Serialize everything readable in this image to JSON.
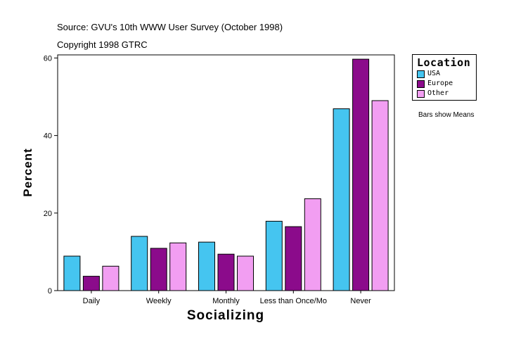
{
  "header": {
    "source": "Source: GVU's 10th WWW User Survey (October 1998)",
    "copyright": "Copyright 1998 GTRC"
  },
  "note": "Bars show Means",
  "chart_data": {
    "type": "bar",
    "title": "",
    "xlabel": "Socializing",
    "ylabel": "Percent",
    "categories": [
      "Daily",
      "Weekly",
      "Monthly",
      "Less than Once/Mo",
      "Never"
    ],
    "series": [
      {
        "name": "USA",
        "color": "#45c5f0",
        "values": [
          8.9,
          14.0,
          12.5,
          17.9,
          46.9
        ]
      },
      {
        "name": "Europe",
        "color": "#8b0b8b",
        "values": [
          3.7,
          10.9,
          9.4,
          16.5,
          59.7
        ]
      },
      {
        "name": "Other",
        "color": "#f29ef2",
        "values": [
          6.3,
          12.3,
          8.9,
          23.7,
          49.0
        ]
      }
    ],
    "ylim": [
      0,
      60.8
    ],
    "yticks": [
      0,
      20,
      40,
      60
    ],
    "grid": false,
    "legend": {
      "title": "Location",
      "position": "right"
    }
  }
}
